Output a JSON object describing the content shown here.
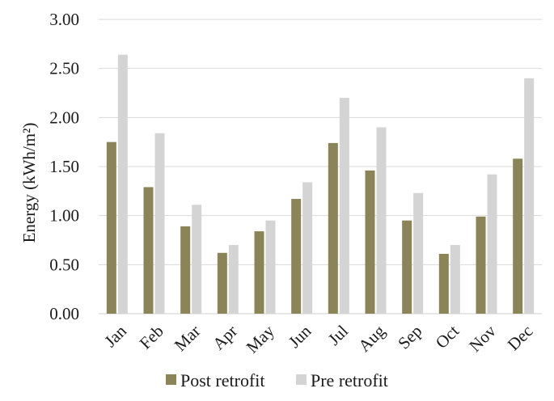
{
  "chart_data": {
    "type": "bar",
    "categories": [
      "Jan",
      "Feb",
      "Mar",
      "Apr",
      "May",
      "Jun",
      "Jul",
      "Aug",
      "Sep",
      "Oct",
      "Nov",
      "Dec"
    ],
    "series": [
      {
        "name": "Post retrofit",
        "color": "#8b8458",
        "values": [
          1.75,
          1.29,
          0.89,
          0.62,
          0.84,
          1.17,
          1.74,
          1.46,
          0.95,
          0.61,
          0.99,
          1.58
        ]
      },
      {
        "name": "Pre retrofit",
        "color": "#d4d4d4",
        "values": [
          2.64,
          1.84,
          1.11,
          0.7,
          0.95,
          1.34,
          2.2,
          1.9,
          1.23,
          0.7,
          1.42,
          2.4
        ]
      }
    ],
    "title": "",
    "xlabel": "",
    "ylabel": "Energy (kWh/m²)",
    "ylim": [
      0,
      3
    ],
    "yticks": [
      "0.00",
      "0.50",
      "1.00",
      "1.50",
      "2.00",
      "2.50",
      "3.00"
    ],
    "grid": true,
    "legend_position": "bottom"
  }
}
